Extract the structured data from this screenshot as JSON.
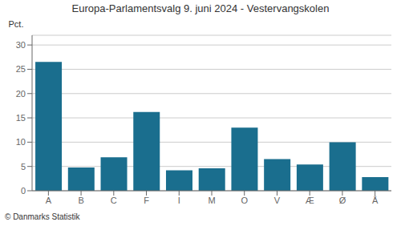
{
  "chart_data": {
    "type": "bar",
    "title": "Europa-Parlamentsvalg 9. juni 2024 - Vestervangskolen",
    "categories": [
      "A",
      "B",
      "C",
      "F",
      "I",
      "M",
      "O",
      "V",
      "Æ",
      "Ø",
      "Å"
    ],
    "values": [
      26.5,
      4.8,
      6.9,
      16.2,
      4.2,
      4.6,
      13.0,
      6.5,
      5.4,
      10.0,
      2.8
    ],
    "color": "#1a6e8e",
    "ylabel": "Pct.",
    "ylim": [
      0,
      32
    ],
    "yticks": [
      0,
      5,
      10,
      15,
      20,
      25,
      30
    ],
    "grid": true,
    "annotations": [
      "© Danmarks Statistik"
    ]
  }
}
